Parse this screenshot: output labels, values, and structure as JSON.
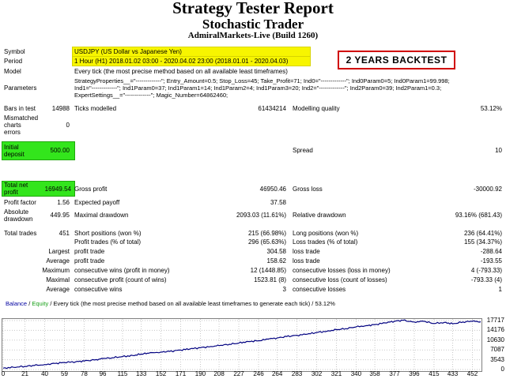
{
  "header": {
    "title": "Strategy Tester Report",
    "subtitle": "Stochastic Trader",
    "server": "AdmiralMarkets-Live (Build 1260)"
  },
  "banner": "2 YEARS BACKTEST",
  "info": {
    "symbol_label": "Symbol",
    "symbol_value": "USDJPY (US Dollar vs Japanese Yen)",
    "period_label": "Period",
    "period_value": "1 Hour (H1) 2018.01.02 03:00 - 2020.04.02 23:00 (2018.01.01 - 2020.04.03)",
    "model_label": "Model",
    "model_value": "Every tick (the most precise method based on all available least timeframes)",
    "params_label": "Parameters",
    "params_line1": "StrategyProperties__=\"-------------\"; Entry_Amount=0.5; Stop_Loss=45; Take_Profit=71; Ind0=\"-------------\"; Ind0Param0=5; Ind0Param1=99.998;",
    "params_line2": "Ind1=\"-------------\"; Ind1Param0=37; Ind1Param1=14; Ind1Param2=4; Ind1Param3=20; Ind2=\"-------------\"; Ind2Param0=39; Ind2Param1=0.3;",
    "params_line3": "ExpertSettings__=\"-------------\"; Magic_Number=64862460;"
  },
  "stats": {
    "bars_label": "Bars in test",
    "bars_value": "14988",
    "ticks_label": "Ticks modelled",
    "ticks_value": "61434214",
    "mq_label": "Modelling quality",
    "mq_value": "53.12%",
    "mismatch_label1": "Mismatched",
    "mismatch_label2": "charts",
    "mismatch_label3": "errors",
    "mismatch_value": "0",
    "deposit_label1": "Initial",
    "deposit_label2": "deposit",
    "deposit_value": "500.00",
    "spread_label": "Spread",
    "spread_value": "10",
    "netprofit_label1": "Total net",
    "netprofit_label2": "profit",
    "netprofit_value": "16949.54",
    "gross_profit_label": "Gross profit",
    "gross_profit_value": "46950.46",
    "gross_loss_label": "Gross loss",
    "gross_loss_value": "-30000.92",
    "pf_label": "Profit factor",
    "pf_value": "1.56",
    "ep_label": "Expected payoff",
    "ep_value": "37.58",
    "abs_dd_label1": "Absolute",
    "abs_dd_label2": "drawdown",
    "abs_dd_value": "449.95",
    "max_dd_label": "Maximal drawdown",
    "max_dd_value": "2093.03 (11.61%)",
    "rel_dd_label": "Relative drawdown",
    "rel_dd_value": "93.16% (681.43)",
    "trades_label": "Total trades",
    "trades_value": "451",
    "short_label": "Short positions (won %)",
    "short_value": "215 (66.98%)",
    "long_label": "Long positions (won %)",
    "long_value": "236 (64.41%)",
    "pt_label": "Profit trades (% of total)",
    "pt_value": "296 (65.63%)",
    "lt_label": "Loss trades (% of total)",
    "lt_value": "155 (34.37%)",
    "largest_label": "Largest",
    "largest_pt_label": "profit trade",
    "largest_pt_value": "304.58",
    "largest_lt_label": "loss trade",
    "largest_lt_value": "-288.64",
    "average_label": "Average",
    "avg_pt_label": "profit trade",
    "avg_pt_value": "158.62",
    "avg_lt_label": "loss trade",
    "avg_lt_value": "-193.55",
    "maximum_label": "Maximum",
    "max_cw_label": "consecutive wins (profit in money)",
    "max_cw_value": "12 (1448.85)",
    "max_cl_label": "consecutive losses (loss in money)",
    "max_cl_value": "4 (-793.33)",
    "maximal_label": "Maximal",
    "mxl_cp_label": "consecutive profit (count of wins)",
    "mxl_cp_value": "1523.81 (8)",
    "mxl_cl_label": "consecutive loss (count of losses)",
    "mxl_cl_value": "-793.33 (4)",
    "average2_label": "Average",
    "avg_cw_label": "consecutive wins",
    "avg_cw_value": "3",
    "avg_cl_label": "consecutive losses",
    "avg_cl_value": "1"
  },
  "chart_legend": {
    "balance": "Balance",
    "sep": " / ",
    "equity": "Equity",
    "rest": " / Every tick (the most precise method based on all available least timeframes to generate each tick) / 53.12%"
  },
  "chart_data": {
    "type": "line",
    "x_ticks": [
      "0",
      "21",
      "40",
      "59",
      "78",
      "96",
      "115",
      "133",
      "152",
      "171",
      "190",
      "208",
      "227",
      "246",
      "264",
      "283",
      "302",
      "321",
      "340",
      "358",
      "377",
      "396",
      "415",
      "433",
      "452"
    ],
    "y_ticks": [
      "17717",
      "14176",
      "10630",
      "7087",
      "3543",
      "0"
    ],
    "ylim": [
      0,
      17717
    ],
    "xlim": [
      0,
      460
    ],
    "series": [
      {
        "name": "Balance",
        "color": "#000080",
        "x": [
          0,
          10,
          21,
          30,
          40,
          50,
          59,
          70,
          78,
          90,
          96,
          105,
          115,
          125,
          133,
          140,
          152,
          160,
          171,
          180,
          190,
          200,
          208,
          218,
          227,
          236,
          246,
          255,
          264,
          273,
          283,
          293,
          302,
          312,
          321,
          330,
          340,
          350,
          358,
          368,
          377,
          385,
          396,
          405,
          415,
          425,
          433,
          443,
          452,
          460
        ],
        "y": [
          500,
          800,
          1150,
          1450,
          1800,
          2200,
          2550,
          2800,
          3100,
          3600,
          3950,
          4250,
          4700,
          5050,
          5600,
          5900,
          6350,
          6550,
          7050,
          7450,
          7900,
          8350,
          8650,
          9150,
          9550,
          10150,
          10400,
          11000,
          11450,
          11950,
          12400,
          12800,
          13400,
          13900,
          14400,
          14800,
          15400,
          15900,
          16250,
          16850,
          17500,
          17800,
          17200,
          17450,
          16650,
          17050,
          16550,
          17200,
          17450,
          17300
        ]
      }
    ]
  }
}
